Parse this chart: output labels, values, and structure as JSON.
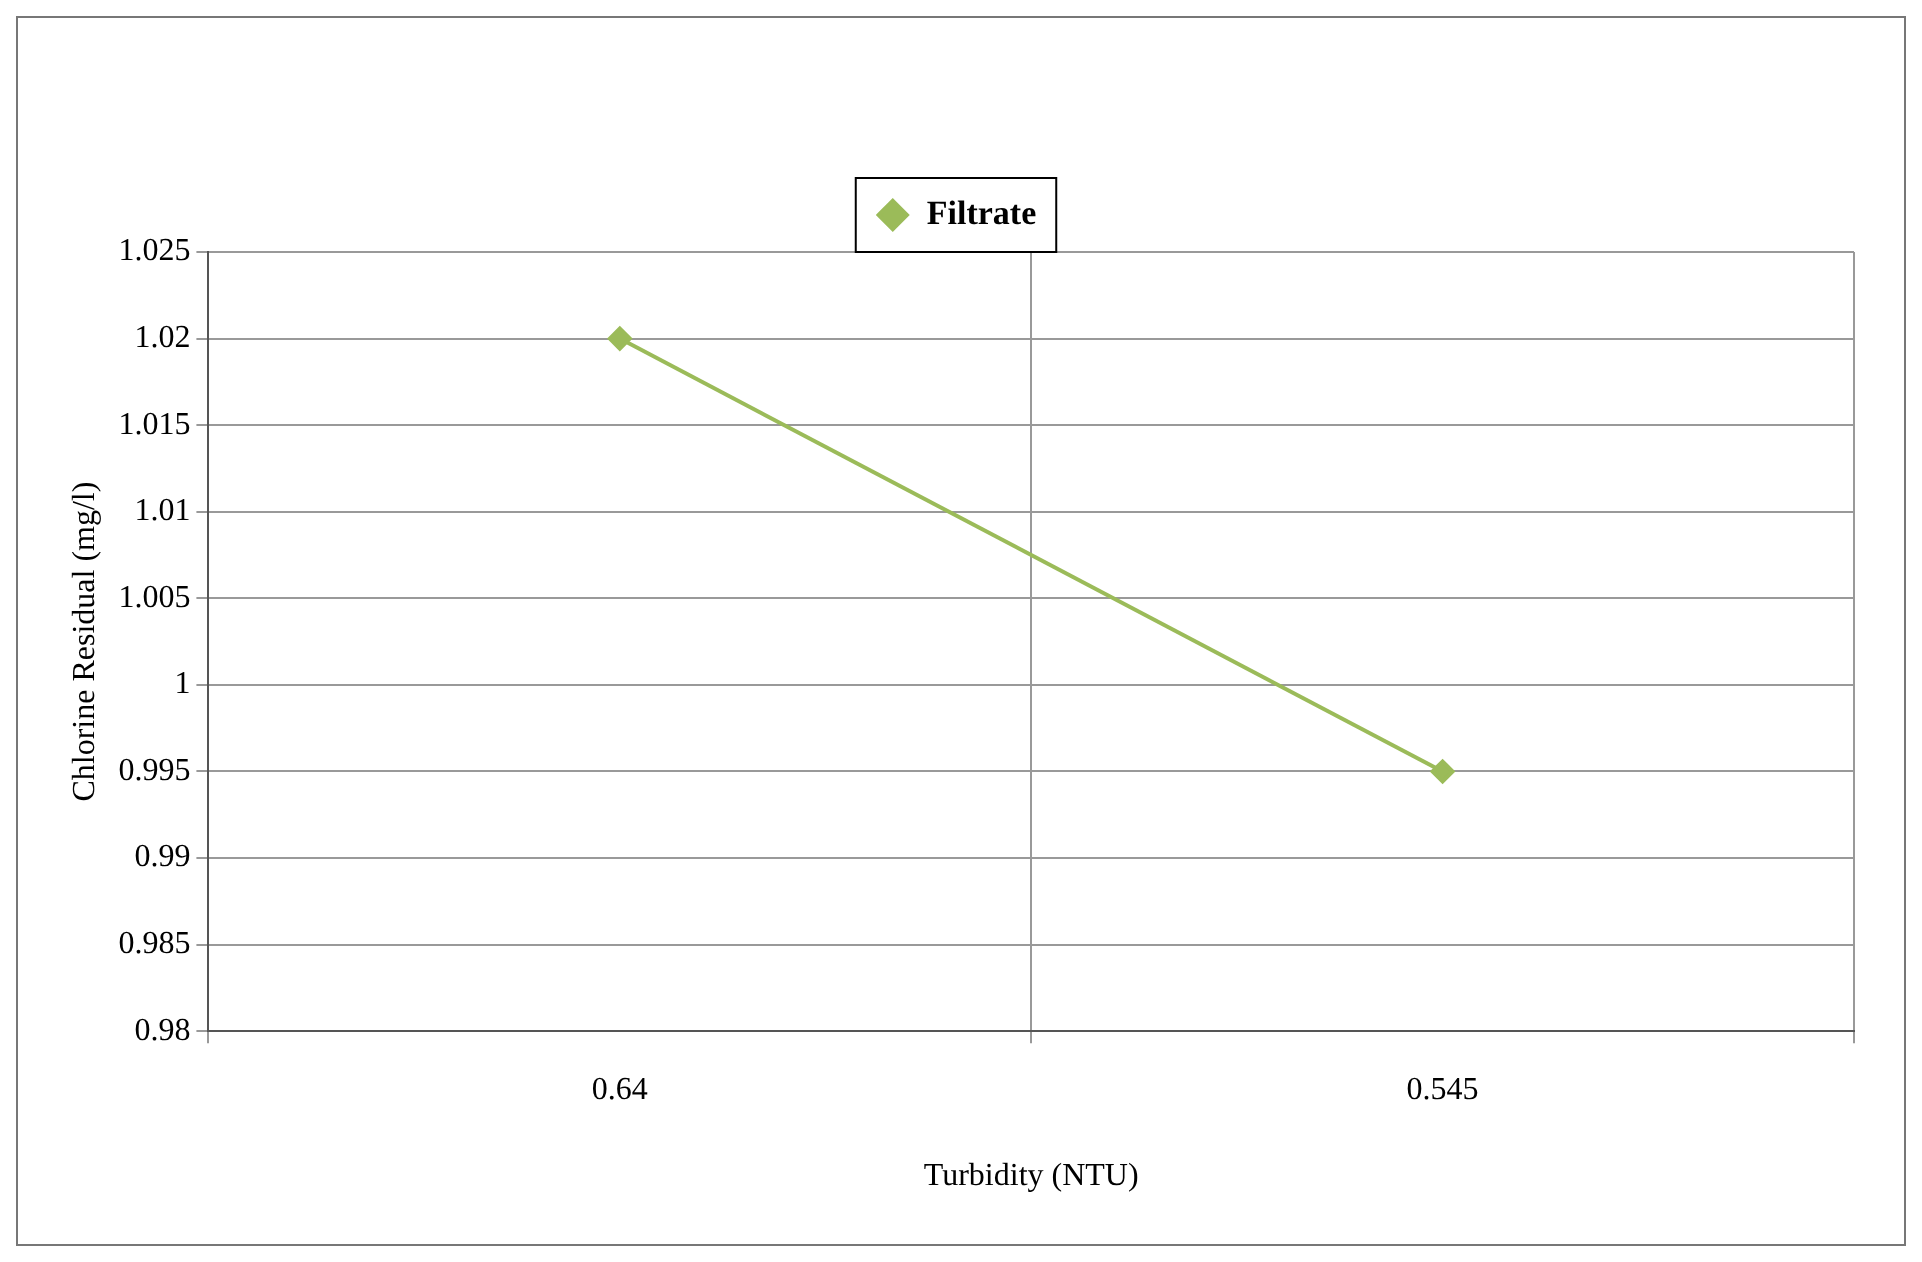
{
  "chart_data": {
    "type": "line",
    "xlabel": "Turbidity (NTU)",
    "ylabel": "Chlorine Residual (mg/l)",
    "categories": [
      "0.64",
      "0.545"
    ],
    "series": [
      {
        "name": "Filtrate",
        "color": "#9bbb59",
        "values": [
          1.02,
          0.995
        ]
      }
    ],
    "ylim": [
      0.98,
      1.025
    ],
    "yticks": [
      0.98,
      0.985,
      0.99,
      0.995,
      1,
      1.005,
      1.01,
      1.015,
      1.02,
      1.025
    ],
    "grid": true,
    "legend": "top",
    "marker": "diamond",
    "line_style": "solid"
  }
}
